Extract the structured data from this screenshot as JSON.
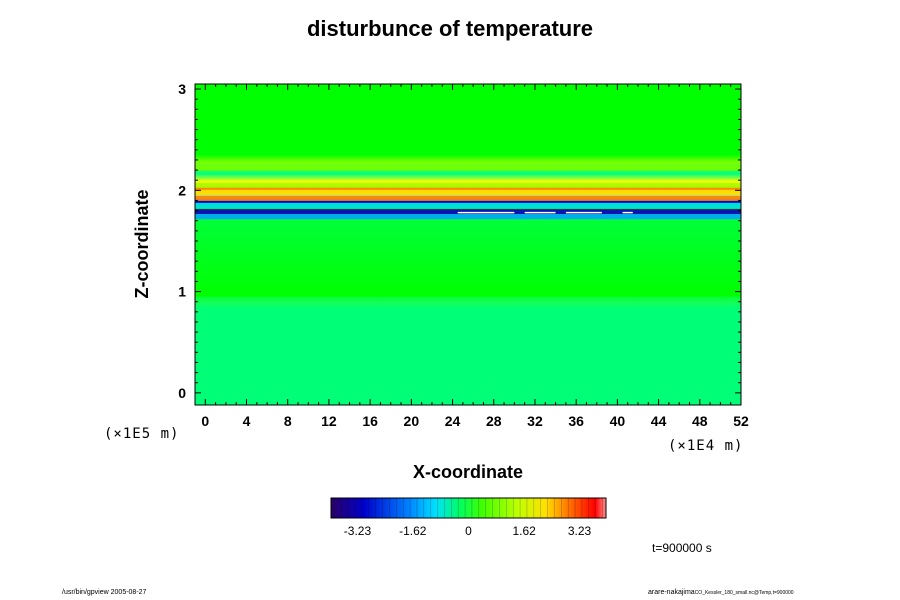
{
  "chart_data": {
    "type": "heatmap",
    "title": "disturbunce of temperature",
    "xlabel": "X-coordinate",
    "ylabel": "Z-coordinate",
    "x_scale_label": "(×1E4 m)",
    "y_scale_label": "(×1E5 m)",
    "xlim": [
      -1,
      52
    ],
    "ylim": [
      -0.12,
      3.05
    ],
    "x_ticks": [
      "0",
      "4",
      "8",
      "12",
      "16",
      "20",
      "24",
      "28",
      "32",
      "36",
      "40",
      "44",
      "48",
      "52"
    ],
    "y_ticks": [
      "0",
      "1",
      "2",
      "3"
    ],
    "colorbar": {
      "ticks": [
        "-3.23",
        "-1.62",
        "0",
        "1.62",
        "3.23"
      ],
      "range": [
        -4.0,
        4.0
      ]
    },
    "time_label": "t=900000 s",
    "bands": [
      {
        "z": 2.22,
        "value": 0.8
      },
      {
        "z": 2.05,
        "value": 1.2
      },
      {
        "z": 1.98,
        "value": 2.2
      },
      {
        "z": 1.92,
        "value": 2.8
      },
      {
        "z": 1.85,
        "value": -0.8
      },
      {
        "z": 1.79,
        "value": -3.2
      },
      {
        "z": 1.74,
        "value": -1.5
      }
    ],
    "background_value": 0.0,
    "lower_region": {
      "z_max": 0.95,
      "value": -0.35
    },
    "colors": {
      "background": "#00ff00",
      "negative": "#0010d0",
      "positive": "#ff2020"
    }
  },
  "footer": {
    "left": "/usr/bin/gpview 2005-08-27",
    "right_main": "arare-nakajima",
    "right_small": "CO_Kessler_180_small.nc@Temp,t=900000"
  }
}
